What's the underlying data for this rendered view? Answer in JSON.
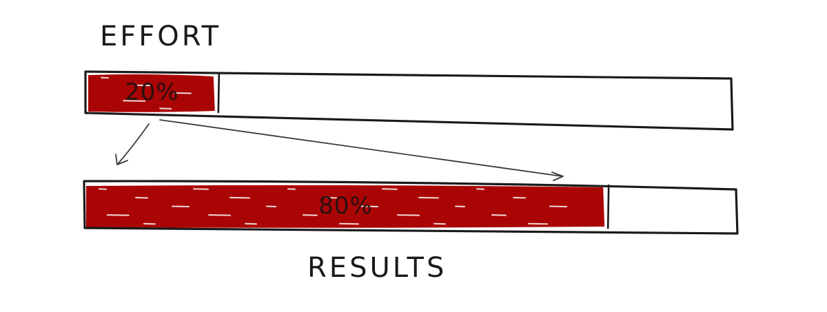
{
  "labels": {
    "effort": "EFFORT",
    "results": "RESULTS"
  },
  "bars": [
    {
      "id": "effort",
      "label": "EFFORT",
      "value": 20,
      "value_label": "20%"
    },
    {
      "id": "results",
      "label": "RESULTS",
      "value": 80,
      "value_label": "80%"
    }
  ],
  "colors": {
    "fill": "#aa0505",
    "ink": "#1a1a1a",
    "arrow": "#3a3a3a"
  }
}
